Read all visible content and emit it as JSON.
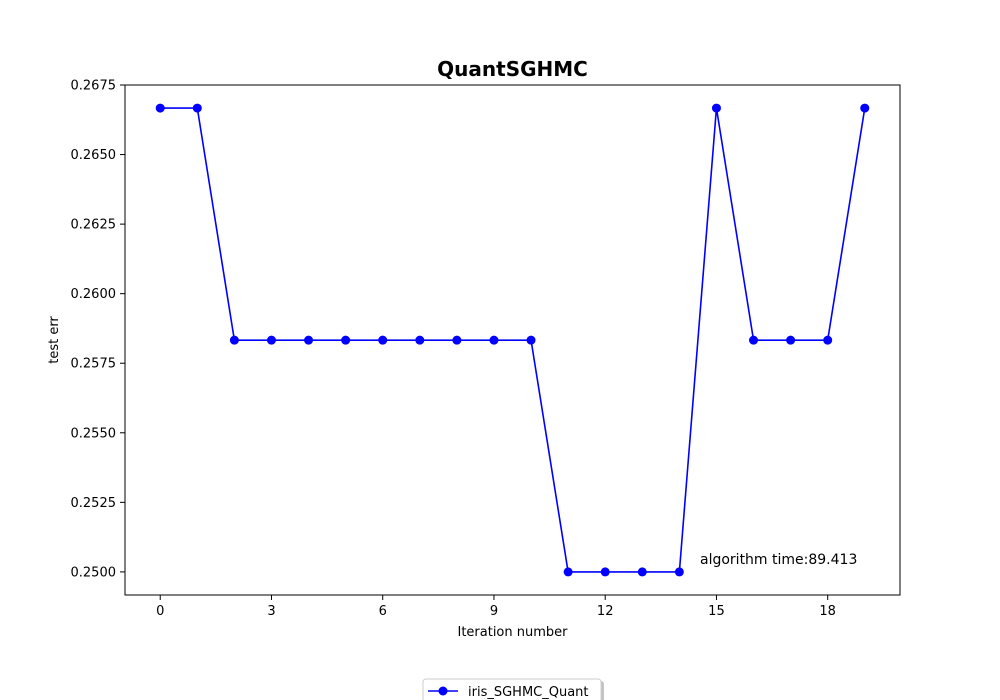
{
  "chart_data": {
    "type": "line",
    "title": "QuantSGHMC",
    "xlabel": "Iteration number",
    "ylabel": "test err",
    "xlim": [
      -0.95,
      19.95
    ],
    "ylim": [
      0.24917,
      0.2675
    ],
    "xticks": [
      0,
      3,
      6,
      9,
      12,
      15,
      18
    ],
    "yticks": [
      0.25,
      0.2525,
      0.255,
      0.2575,
      0.26,
      0.2625,
      0.265,
      0.2675
    ],
    "ytick_labels": [
      "0.2500",
      "0.2525",
      "0.2550",
      "0.2575",
      "0.2600",
      "0.2625",
      "0.2650",
      "0.2675"
    ],
    "grid": false,
    "legend_position": "bottom-center, below plot",
    "annotation": "algorithm time:89.413",
    "series": [
      {
        "name": "iris_SGHMC_Quant",
        "color": "#0000ff",
        "marker": "circle",
        "x": [
          0,
          1,
          2,
          3,
          4,
          5,
          6,
          7,
          8,
          9,
          10,
          11,
          12,
          13,
          14,
          15,
          16,
          17,
          18,
          19
        ],
        "values": [
          0.26667,
          0.26667,
          0.25833,
          0.25833,
          0.25833,
          0.25833,
          0.25833,
          0.25833,
          0.25833,
          0.25833,
          0.25833,
          0.25,
          0.25,
          0.25,
          0.25,
          0.26667,
          0.25833,
          0.25833,
          0.25833,
          0.26667
        ]
      }
    ]
  }
}
